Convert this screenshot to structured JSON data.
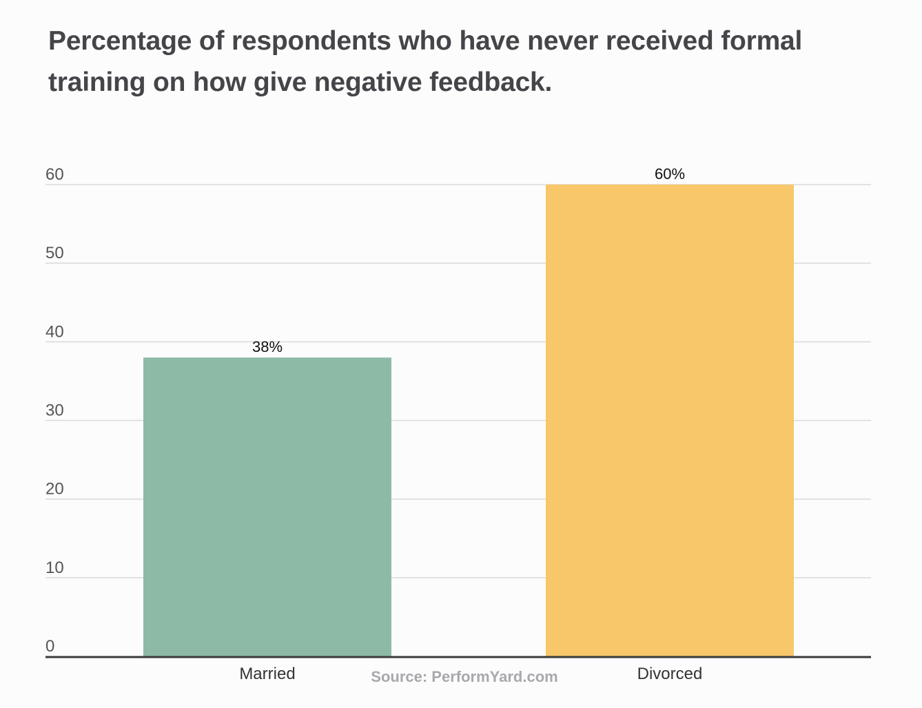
{
  "chart_data": {
    "type": "bar",
    "title": "Percentage of respondents who have never received formal training on how give negative feedback.",
    "categories": [
      "Married",
      "Divorced"
    ],
    "values": [
      38,
      60
    ],
    "data_labels": [
      "38%",
      "60%"
    ],
    "bar_colors": [
      "#8dbaa7",
      "#f7c76a"
    ],
    "yticks": [
      0,
      10,
      20,
      30,
      40,
      50,
      60
    ],
    "ylim": [
      0,
      60
    ],
    "grid": true,
    "legend": "none",
    "source": "Source: PerformYard.com"
  }
}
